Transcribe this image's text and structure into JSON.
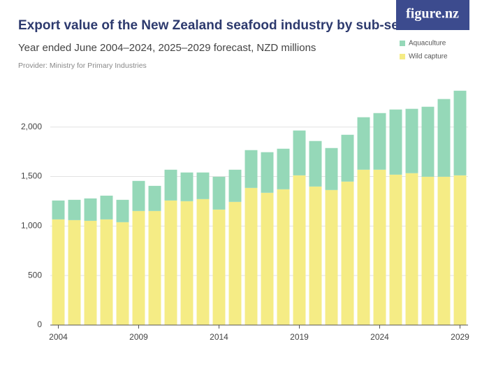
{
  "chart_data": {
    "type": "stacked-bar",
    "title": "Export value of the New Zealand seafood industry by sub-sector",
    "subtitle": "Year ended June 2004–2024, 2025–2029 forecast, NZD millions",
    "provider": "Provider: Ministry for Primary Industries",
    "logo": "figure.nz",
    "x": [
      2004,
      2005,
      2006,
      2007,
      2008,
      2009,
      2010,
      2011,
      2012,
      2013,
      2014,
      2015,
      2016,
      2017,
      2018,
      2019,
      2020,
      2021,
      2022,
      2023,
      2024,
      2025,
      2026,
      2027,
      2028,
      2029
    ],
    "xlim": [
      2003.5,
      2029.5
    ],
    "xticks": [
      2004,
      2009,
      2014,
      2019,
      2024,
      2029
    ],
    "series": [
      {
        "name": "Aquaculture",
        "color": "#95d8b8",
        "values": [
          191,
          205,
          226,
          240,
          226,
          304,
          254,
          311,
          290,
          269,
          332,
          325,
          382,
          410,
          410,
          453,
          460,
          424,
          473,
          530,
          572,
          658,
          650,
          707,
          785,
          855
        ]
      },
      {
        "name": "Wild capture",
        "color": "#f5ec85",
        "values": [
          1067,
          1060,
          1053,
          1067,
          1039,
          1152,
          1152,
          1258,
          1251,
          1272,
          1166,
          1244,
          1385,
          1336,
          1371,
          1512,
          1399,
          1364,
          1449,
          1569,
          1569,
          1519,
          1534,
          1498,
          1498,
          1512
        ]
      }
    ],
    "ylim": [
      0,
      2450
    ],
    "yticks": [
      0,
      500,
      {
        "value": 1000,
        "label": "1,000"
      },
      {
        "value": 1500,
        "label": "1,500"
      },
      {
        "value": 2000,
        "label": "2,000"
      }
    ],
    "grid": true,
    "legend": "top-right"
  }
}
